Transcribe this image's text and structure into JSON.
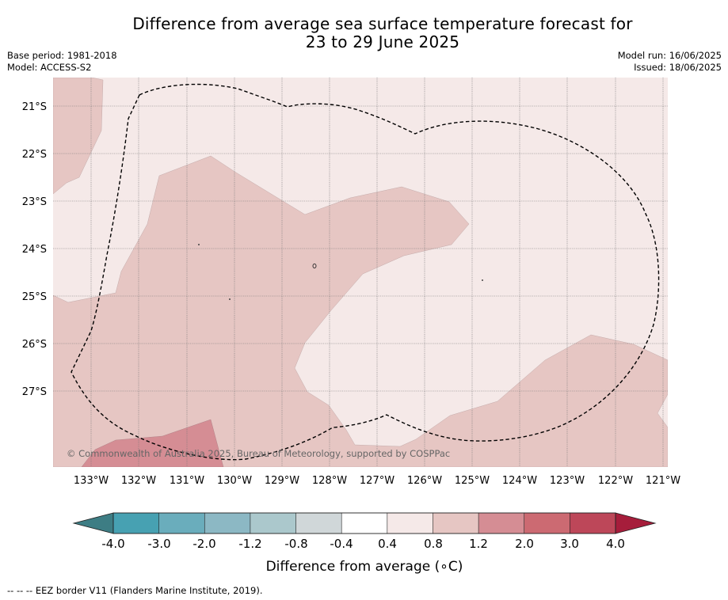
{
  "title": {
    "line1": "Difference from average sea surface temperature forecast for",
    "line2": "23 to 29 June 2025"
  },
  "meta": {
    "base_period": "Base period: 1981-2018",
    "model": "Model: ACCESS-S2",
    "model_run": "Model run: 16/06/2025",
    "issued": "Issued: 18/06/2025"
  },
  "map": {
    "latitude_labels": [
      "21°S",
      "22°S",
      "23°S",
      "24°S",
      "25°S",
      "26°S",
      "27°S"
    ],
    "longitude_labels": [
      "133°W",
      "132°W",
      "131°W",
      "130°W",
      "129°W",
      "128°W",
      "127°W",
      "126°W",
      "125°W",
      "124°W",
      "123°W",
      "122°W",
      "121°W"
    ],
    "copyright": "© Commonwealth of Australia 2025, Bureau of Meteorology, supported by COSPPac",
    "colors": {
      "background_band": "#f5e9e8",
      "band_0_8_1_2": "#e6c6c3",
      "band_1_2_2_0": "#d58d94",
      "eez_border": "#000000"
    }
  },
  "colorbar": {
    "tick_labels": [
      "-4.0",
      "-3.0",
      "-2.0",
      "-1.2",
      "-0.8",
      "-0.4",
      "0.4",
      "0.8",
      "1.2",
      "2.0",
      "3.0",
      "4.0"
    ],
    "colors": {
      "under": "#3d7d84",
      "bins": [
        "#47a1b2",
        "#6aadbc",
        "#8cb8c4",
        "#abc8cc",
        "#d0d7d9",
        "#ffffff",
        "#f5e9e8",
        "#e6c6c3",
        "#d58d94",
        "#cc6a72",
        "#bd4759"
      ],
      "over": "#a61d3b"
    },
    "label": "Difference from average (∘C)"
  },
  "footnote": "--  --  -- EEZ border V11 (Flanders Marine Institute, 2019)."
}
